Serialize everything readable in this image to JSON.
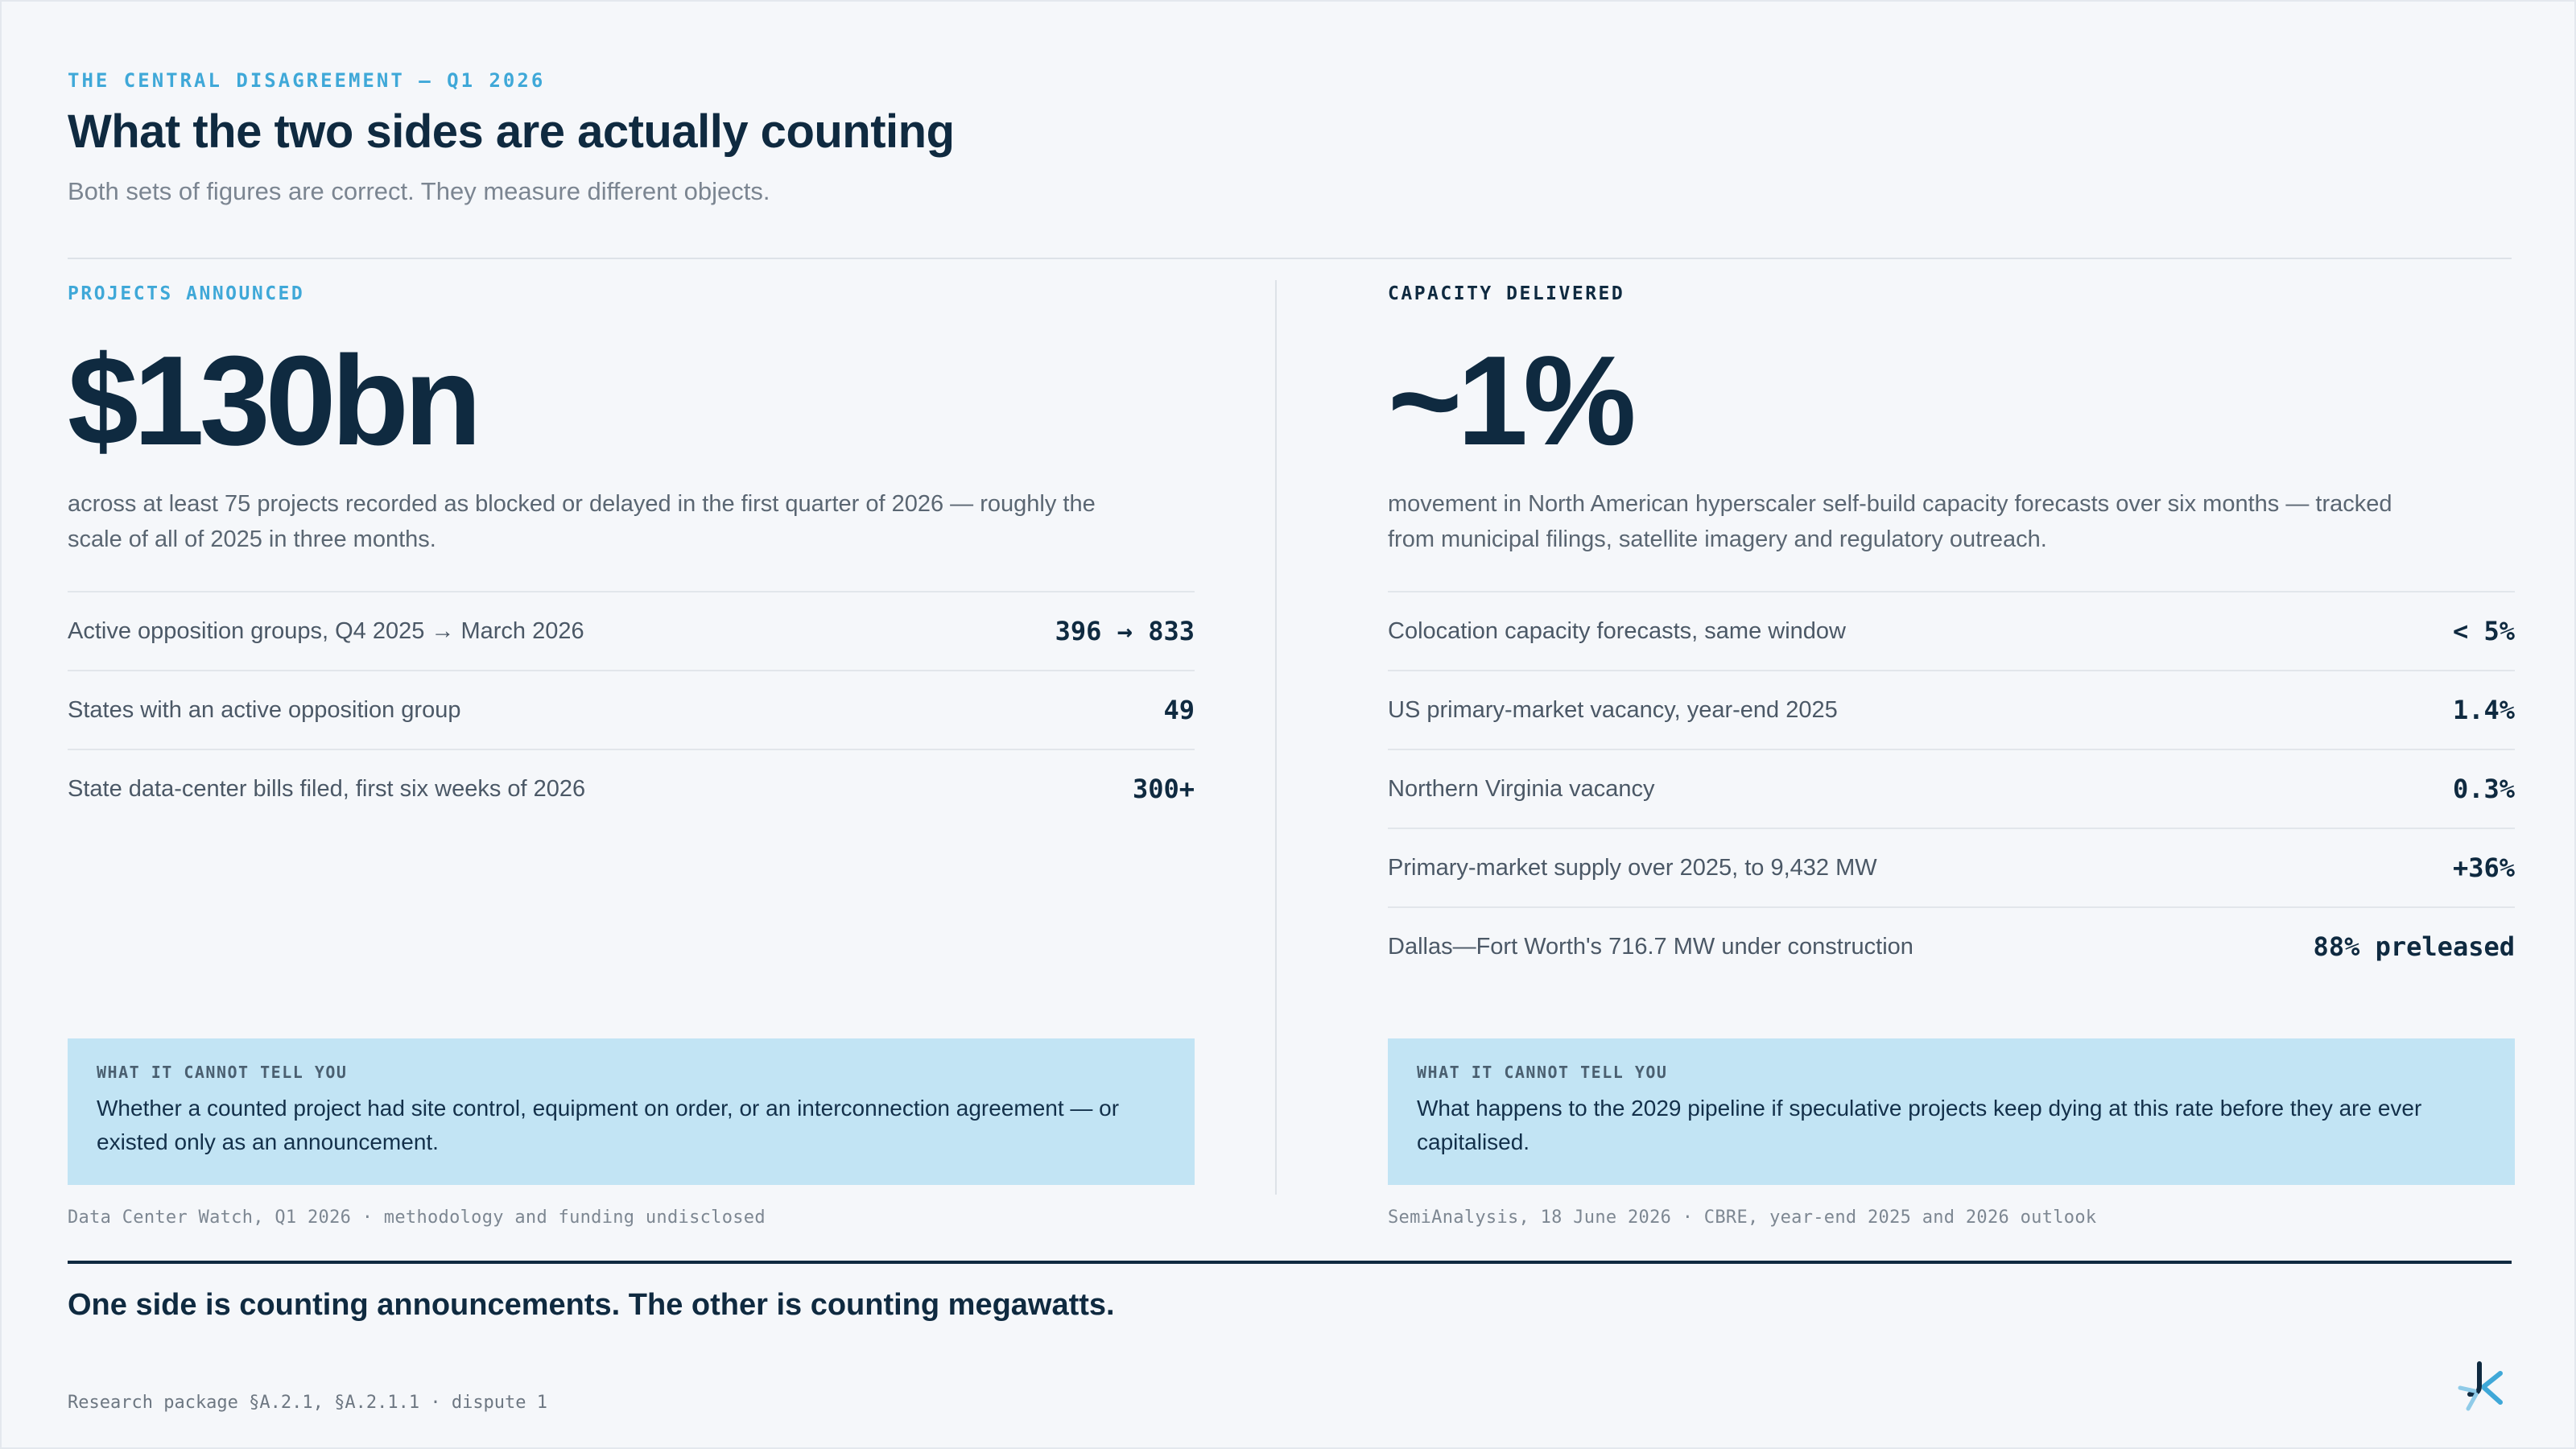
{
  "header": {
    "eyebrow": "THE CENTRAL DISAGREEMENT — Q1 2026",
    "title": "What the two sides are actually counting",
    "subtitle": "Both sets of figures are correct. They measure different objects."
  },
  "left": {
    "label": "PROJECTS ANNOUNCED",
    "figure": "$130bn",
    "description": "across at least 75 projects recorded as blocked or delayed in the first quarter of 2026 — roughly the scale of all of 2025 in three months.",
    "stats": [
      {
        "label": "Active opposition groups, Q4 2025 → March 2026",
        "value": "396 → 833"
      },
      {
        "label": "States with an active opposition group",
        "value": "49"
      },
      {
        "label": "State data-center bills filed, first six weeks of 2026",
        "value": "300+"
      }
    ],
    "callout": {
      "label": "WHAT IT CANNOT TELL YOU",
      "text": "Whether a counted project had site control, equipment on order, or an interconnection agreement — or existed only as an announcement."
    },
    "source": "Data Center Watch, Q1 2026 · methodology and funding undisclosed"
  },
  "right": {
    "label": "CAPACITY DELIVERED",
    "figure": "~1%",
    "description": "movement in North American hyperscaler self-build capacity forecasts over six months — tracked from municipal filings, satellite imagery and regulatory outreach.",
    "stats": [
      {
        "label": "Colocation capacity forecasts, same window",
        "value": "< 5%"
      },
      {
        "label": "US primary-market vacancy, year-end 2025",
        "value": "1.4%"
      },
      {
        "label": "Northern Virginia vacancy",
        "value": "0.3%"
      },
      {
        "label": "Primary-market supply over 2025, to 9,432 MW",
        "value": "+36%"
      },
      {
        "label": "Dallas—Fort Worth's 716.7 MW under construction",
        "value": "88% preleased"
      }
    ],
    "callout": {
      "label": "WHAT IT CANNOT TELL YOU",
      "text": "What happens to the 2029 pipeline if speculative projects keep dying at this rate before they are ever capitalised."
    },
    "source": "SemiAnalysis, 18 June 2026 · CBRE, year-end 2025 and 2026 outlook"
  },
  "conclusion": "One side is counting announcements. The other is counting megawatts.",
  "footer": "Research package §A.2.1, §A.2.1.1 · dispute 1",
  "logo": {
    "icon": "monogram-logo-icon",
    "colors": [
      "#0f2a40",
      "#3fa8d8",
      "#8fcbe8"
    ]
  }
}
